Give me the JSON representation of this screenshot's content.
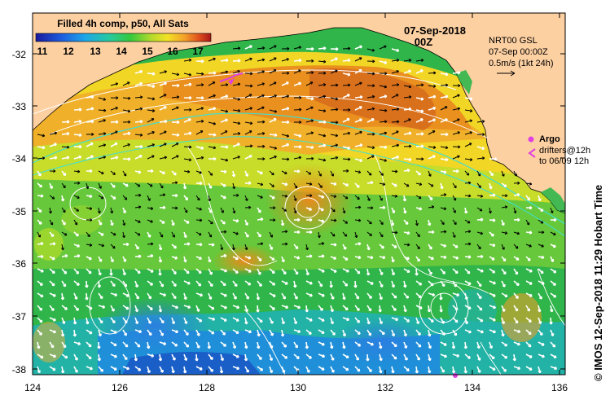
{
  "title": "Filled 4h comp, p50, All Sats",
  "colorbar": {
    "ticks": [
      "11",
      "12",
      "13",
      "14",
      "15",
      "16",
      "17"
    ],
    "colors": [
      "#1a1aa0",
      "#1f5fe0",
      "#1ea0e6",
      "#22c6b4",
      "#2ec94a",
      "#a7d92c",
      "#f0e626",
      "#f3a82a",
      "#e3571f",
      "#b11a1a"
    ]
  },
  "date": "07-Sep-2018",
  "time": "00Z",
  "vector_info": {
    "line1": "NRT00 GSL",
    "line2": "07-Sep 00:00Z",
    "line3": "0.5m/s (1kt 24h)"
  },
  "argo": {
    "label": "Argo",
    "drifters_line1": "drifters@12h",
    "drifters_line2": "to 06/09 12h",
    "color": "#e040e0"
  },
  "credit": "© IMOS 12-Sep-2018 11:29 Hobart Time",
  "axes": {
    "x_ticks": [
      "124",
      "126",
      "128",
      "130",
      "132",
      "134",
      "136"
    ],
    "y_ticks": [
      "-32",
      "-33",
      "-34",
      "-35",
      "-36",
      "-37",
      "-38"
    ]
  },
  "colors": {
    "land": "#fdd0a2",
    "coast": "#000000"
  }
}
